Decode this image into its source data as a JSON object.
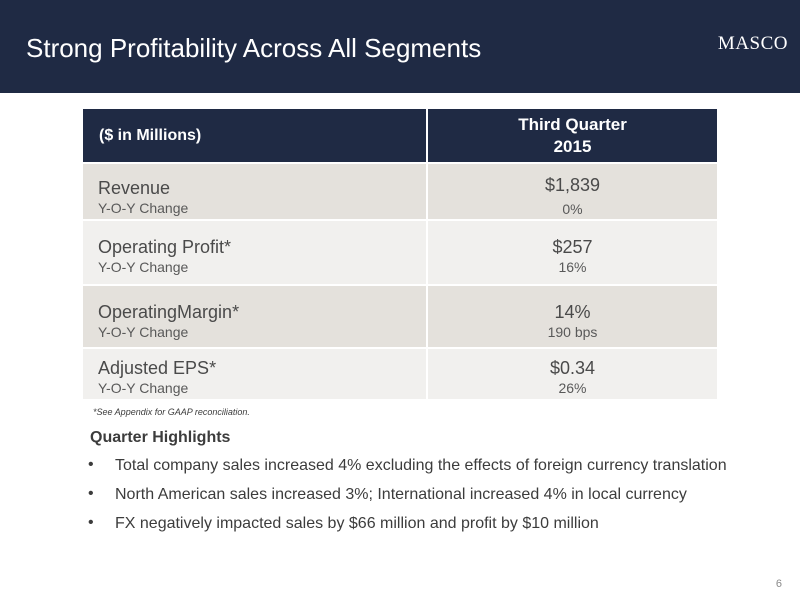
{
  "header": {
    "title": "Strong Profitability Across All Segments",
    "logo_text": "MASCO"
  },
  "table": {
    "header": {
      "label": "($ in Millions)",
      "period_line1": "Third Quarter",
      "period_line2": "2015"
    },
    "rows": [
      {
        "metric": "Revenue",
        "sub_label": "Y-O-Y Change",
        "value": "$1,839",
        "change": "0%"
      },
      {
        "metric": "Operating Profit*",
        "sub_label": "Y-O-Y Change",
        "value": "$257",
        "change": "16%"
      },
      {
        "metric": "OperatingMargin*",
        "sub_label": "Y-O-Y Change",
        "value": "14%",
        "change": "190 bps"
      },
      {
        "metric": "Adjusted EPS*",
        "sub_label": "Y-O-Y Change",
        "value": "$0.34",
        "change": "26%"
      }
    ]
  },
  "footnote": "*See Appendix for GAAP reconciliation.",
  "highlights": {
    "title": "Quarter Highlights",
    "bullet_glyph": "•",
    "items": [
      "Total company sales increased 4% excluding the effects of foreign currency translation",
      "North American sales increased 3%; International increased 4% in local currency",
      "FX negatively impacted sales by $66 million and profit by $10 million"
    ]
  },
  "page_number": "6",
  "colors": {
    "header_bg": "#1f2a44",
    "row_dark": "#e4e1dc",
    "row_light": "#f1f0ee"
  }
}
